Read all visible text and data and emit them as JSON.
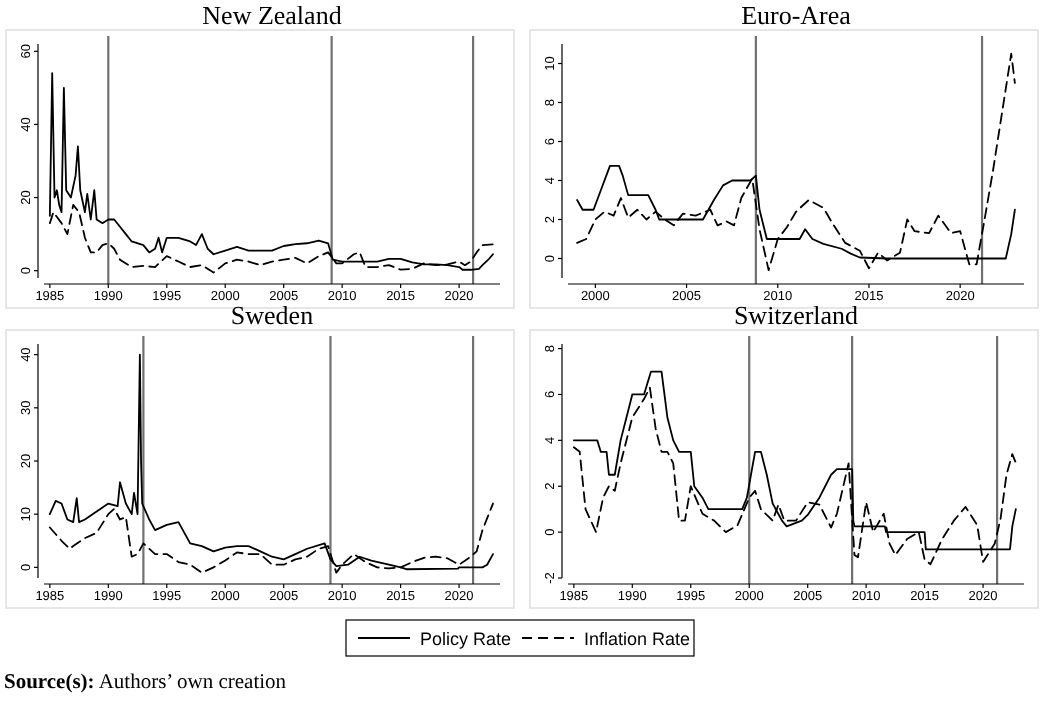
{
  "chart_data": [
    {
      "type": "line",
      "title": "New Zealand",
      "legend": "bottom",
      "annotations": [
        "Source(s): Authors’ own creation"
      ],
      "xlim": [
        1984.5,
        2023.5
      ],
      "ylim": [
        -2,
        62
      ],
      "xticks": [
        1985,
        1990,
        1995,
        2000,
        2005,
        2010,
        2015,
        2020
      ],
      "yticks": [
        0,
        20,
        40,
        60
      ],
      "grid": false,
      "marker": "none",
      "ref_lines": [
        {
          "axis": "x",
          "value": 1990
        },
        {
          "axis": "x",
          "value": 2009.1
        },
        {
          "axis": "x",
          "value": 2021.2
        }
      ],
      "series": [
        {
          "name": "Policy Rate",
          "color": "#000000",
          "line_style": "solid",
          "x": [
            1985,
            1985.2,
            1985.4,
            1985.6,
            1985.8,
            1986,
            1986.2,
            1986.4,
            1986.8,
            1987.2,
            1987.4,
            1987.6,
            1988,
            1988.2,
            1988.5,
            1988.8,
            1989,
            1989.5,
            1990,
            1990.5,
            1991,
            1991.5,
            1992,
            1993,
            1993.5,
            1994,
            1994.3,
            1994.6,
            1995,
            1996,
            1997,
            1997.5,
            1998,
            1998.5,
            1999,
            2000,
            2001,
            2002,
            2003,
            2004,
            2005,
            2006,
            2007,
            2008,
            2008.8,
            2009.2,
            2010,
            2011,
            2012,
            2013,
            2014,
            2015,
            2016,
            2017,
            2018,
            2019,
            2020,
            2020.3,
            2021,
            2021.7,
            2022,
            2022.5,
            2022.9
          ],
          "values": [
            15,
            54,
            20,
            22,
            18,
            16,
            50,
            22,
            20,
            26,
            34,
            22,
            16,
            21,
            14,
            22,
            14,
            13,
            14,
            14,
            12,
            10,
            8,
            7,
            5,
            6,
            9,
            5,
            9,
            9,
            8,
            7,
            10,
            6,
            4.5,
            5.5,
            6.5,
            5.5,
            5.5,
            5.5,
            6.75,
            7.25,
            7.5,
            8.25,
            7.5,
            3,
            2.5,
            2.5,
            2.5,
            2.5,
            3.25,
            3.25,
            2.25,
            1.75,
            1.75,
            1.5,
            1,
            0.25,
            0.25,
            0.5,
            1.5,
            3,
            4.5
          ]
        },
        {
          "name": "Inflation Rate",
          "color": "#000000",
          "line_style": "dashed",
          "x": [
            1985,
            1985.3,
            1986,
            1986.5,
            1987,
            1987.5,
            1988,
            1988.5,
            1989,
            1989.5,
            1990,
            1990.5,
            1991,
            1992,
            1993,
            1994,
            1995,
            1996,
            1997,
            1998,
            1999,
            2000,
            2001,
            2002,
            2003,
            2004,
            2005,
            2006,
            2007,
            2008,
            2008.8,
            2009.5,
            2010,
            2011,
            2011.5,
            2012,
            2013,
            2014,
            2015,
            2016,
            2017,
            2018,
            2019,
            2020,
            2020.5,
            2021,
            2021.5,
            2022,
            2022.9
          ],
          "values": [
            13,
            16,
            13,
            10,
            18,
            16,
            9,
            5,
            5,
            7,
            7.5,
            6,
            3,
            1,
            1.3,
            1,
            4,
            2.5,
            1,
            1.5,
            -0.5,
            2,
            3,
            2.5,
            1.5,
            2.5,
            3,
            3.5,
            2,
            4,
            5,
            2,
            2,
            4.5,
            5,
            1,
            1,
            1.5,
            0.3,
            0.5,
            2,
            1.5,
            1.7,
            2.5,
            1.5,
            2.5,
            5,
            7,
            7.2
          ]
        }
      ]
    },
    {
      "type": "line",
      "title": "Euro-Area",
      "xlim": [
        1998.5,
        2023.5
      ],
      "ylim": [
        -1,
        11
      ],
      "xticks": [
        2000,
        2005,
        2010,
        2015,
        2020
      ],
      "yticks": [
        0,
        2,
        4,
        6,
        8,
        10
      ],
      "grid": false,
      "marker": "none",
      "ref_lines": [
        {
          "axis": "x",
          "value": 2008.8
        },
        {
          "axis": "x",
          "value": 2021.2
        }
      ],
      "series": [
        {
          "color": "#000000",
          "line_style": "solid",
          "x": [
            1999,
            1999.3,
            1999.9,
            2000.3,
            2000.8,
            2001.3,
            2001.5,
            2001.8,
            2002.9,
            2003.3,
            2003.5,
            2005.9,
            2006.5,
            2007,
            2007.5,
            2008.5,
            2008.8,
            2009,
            2009.4,
            2011.2,
            2011.5,
            2011.9,
            2012.5,
            2013.5,
            2014,
            2014.5,
            2016,
            2022.5,
            2022.8,
            2023
          ],
          "values": [
            3,
            2.5,
            2.5,
            3.5,
            4.75,
            4.75,
            4.25,
            3.25,
            3.25,
            2.5,
            2,
            2,
            3,
            3.75,
            4,
            4,
            4.25,
            2.5,
            1,
            1,
            1.5,
            1,
            0.75,
            0.5,
            0.25,
            0.05,
            0,
            0,
            1.25,
            2.5
          ]
        },
        {
          "color": "#000000",
          "line_style": "dashed",
          "x": [
            1999,
            1999.5,
            2000,
            2000.5,
            2001,
            2001.4,
            2001.8,
            2002.3,
            2002.8,
            2003.3,
            2003.8,
            2004.3,
            2004.8,
            2005.5,
            2006.3,
            2006.7,
            2007.2,
            2007.6,
            2008,
            2008.6,
            2009,
            2009.5,
            2010,
            2010.5,
            2011,
            2011.7,
            2012.5,
            2013,
            2013.7,
            2014.5,
            2015,
            2015.5,
            2016,
            2016.7,
            2017.1,
            2017.5,
            2018.3,
            2018.8,
            2019.5,
            2020,
            2020.5,
            2020.9,
            2021.3,
            2021.8,
            2022.3,
            2022.8,
            2023
          ],
          "values": [
            0.8,
            1,
            2,
            2.4,
            2.2,
            3.1,
            2.1,
            2.5,
            2,
            2.4,
            2,
            1.7,
            2.3,
            2.2,
            2.5,
            1.7,
            1.9,
            1.7,
            3.1,
            4.1,
            1.5,
            -0.6,
            1,
            1.6,
            2.4,
            3,
            2.6,
            1.8,
            0.8,
            0.4,
            -0.5,
            0.3,
            -0.1,
            0.3,
            2,
            1.4,
            1.3,
            2.2,
            1.3,
            1.4,
            -0.3,
            -0.3,
            1.8,
            4.5,
            7.5,
            10.5,
            9
          ]
        }
      ]
    },
    {
      "type": "line",
      "title": "Sweden",
      "xlim": [
        1984.5,
        2023.5
      ],
      "ylim": [
        -2,
        42
      ],
      "xticks": [
        1985,
        1990,
        1995,
        2000,
        2005,
        2010,
        2015,
        2020
      ],
      "yticks": [
        0,
        10,
        20,
        30,
        40
      ],
      "grid": false,
      "marker": "none",
      "ref_lines": [
        {
          "axis": "x",
          "value": 1993
        },
        {
          "axis": "x",
          "value": 2009
        },
        {
          "axis": "x",
          "value": 2021.2
        }
      ],
      "series": [
        {
          "color": "#000000",
          "line_style": "solid",
          "x": [
            1985,
            1985.5,
            1986,
            1986.5,
            1987,
            1987.3,
            1987.5,
            1988,
            1989,
            1990,
            1990.8,
            1991,
            1991.5,
            1992,
            1992.2,
            1992.5,
            1992.7,
            1992.8,
            1992.9,
            1993.5,
            1994,
            1995,
            1996,
            1997,
            1998,
            1999,
            2000,
            2001,
            2002,
            2003,
            2004,
            2005,
            2006,
            2007,
            2008.5,
            2009,
            2009.5,
            2010.5,
            2011.5,
            2012.5,
            2014,
            2015,
            2015.5,
            2019.9,
            2020,
            2022,
            2022.4,
            2022.9
          ],
          "values": [
            10,
            12.5,
            12,
            9,
            8.5,
            13,
            8.5,
            9,
            10.5,
            12,
            11.5,
            16,
            12,
            10,
            14,
            10,
            40,
            20,
            12,
            9,
            7,
            8,
            8.5,
            4.5,
            4,
            3,
            3.7,
            4,
            4,
            3,
            2,
            1.5,
            2.5,
            3.5,
            4.5,
            1.5,
            0.25,
            0.5,
            2,
            1.25,
            0.5,
            0,
            -0.35,
            -0.25,
            0,
            0,
            0.5,
            2.5
          ]
        },
        {
          "color": "#000000",
          "line_style": "dashed",
          "x": [
            1985,
            1986,
            1986.7,
            1987,
            1988,
            1989,
            1990,
            1990.5,
            1991,
            1991.5,
            1992,
            1992.5,
            1993,
            1994,
            1995,
            1996,
            1997,
            1998,
            1999,
            2000,
            2001,
            2002,
            2003,
            2004,
            2005,
            2006,
            2007,
            2008,
            2008.8,
            2009.5,
            2010,
            2011,
            2012,
            2013,
            2014,
            2015,
            2016,
            2017,
            2018,
            2019,
            2020,
            2021,
            2021.5,
            2022,
            2022.9
          ],
          "values": [
            7.5,
            5,
            3.5,
            4,
            5.5,
            6.5,
            10,
            11,
            9,
            9.5,
            2,
            2.5,
            4.5,
            2.5,
            2.5,
            1,
            0.5,
            -1,
            0,
            1.3,
            2.8,
            2.5,
            2.5,
            0.5,
            0.5,
            1.5,
            2,
            3.5,
            4,
            -1,
            0.5,
            2.5,
            1,
            0,
            -0.2,
            0,
            1,
            1.8,
            2,
            1.7,
            0.5,
            2,
            3,
            7,
            12
          ]
        }
      ]
    },
    {
      "type": "line",
      "title": "Switzerland",
      "xlim": [
        1984.5,
        2023.5
      ],
      "ylim": [
        -2,
        8.2
      ],
      "xticks": [
        1985,
        1990,
        1995,
        2000,
        2005,
        2010,
        2015,
        2020
      ],
      "yticks": [
        -2,
        0,
        2,
        4,
        6,
        8
      ],
      "grid": false,
      "marker": "none",
      "ref_lines": [
        {
          "axis": "x",
          "value": 2000
        },
        {
          "axis": "x",
          "value": 2008.8
        },
        {
          "axis": "x",
          "value": 2021.2
        }
      ],
      "series": [
        {
          "color": "#000000",
          "line_style": "solid",
          "x": [
            1985,
            1987,
            1987.3,
            1987.8,
            1988,
            1988.5,
            1989,
            1989.5,
            1990,
            1991,
            1991.6,
            1992.5,
            1993,
            1993.5,
            1994,
            1995,
            1995.3,
            1996,
            1996.5,
            1999.4,
            1999.8,
            2000.5,
            2001,
            2001.5,
            2002,
            2002.8,
            2003.2,
            2004.5,
            2005,
            2006,
            2007,
            2007.5,
            2008.8,
            2008.9,
            2009,
            2011.6,
            2011.7,
            2015,
            2015.1,
            2022.3,
            2022.5,
            2022.8
          ],
          "values": [
            4,
            4,
            3.5,
            3.5,
            2.5,
            2.5,
            4,
            5,
            6,
            6,
            7,
            7,
            5,
            4,
            3.5,
            3.5,
            2,
            1.5,
            1,
            1,
            1.5,
            3.5,
            3.5,
            2.5,
            1.25,
            0.5,
            0.25,
            0.5,
            0.75,
            1.5,
            2.5,
            2.75,
            2.75,
            0.5,
            0.25,
            0.25,
            0,
            0,
            -0.75,
            -0.75,
            0.25,
            1
          ]
        },
        {
          "color": "#000000",
          "line_style": "dashed",
          "x": [
            1985,
            1985.5,
            1986,
            1986.9,
            1987.5,
            1988,
            1988.5,
            1989,
            1990,
            1991,
            1991.5,
            1992,
            1992.5,
            1993,
            1993.5,
            1994,
            1994.5,
            1995,
            1996,
            1997,
            1998,
            1999,
            2000,
            2000.5,
            2001,
            2002,
            2002.5,
            2003,
            2004,
            2005,
            2006,
            2007,
            2007.5,
            2008.5,
            2009,
            2009.3,
            2010,
            2010.6,
            2011.5,
            2012,
            2012.5,
            2013.5,
            2014.5,
            2015,
            2015.5,
            2016.5,
            2017.5,
            2018.5,
            2019.5,
            2020,
            2021,
            2021.5,
            2022,
            2022.5,
            2022.9
          ],
          "values": [
            3.7,
            3.5,
            1,
            0,
            1.5,
            2,
            1.8,
            3,
            5,
            5.8,
            6.3,
            4.5,
            3.5,
            3.5,
            3,
            0.5,
            0.5,
            2,
            0.8,
            0.5,
            0,
            0.3,
            1.5,
            1.8,
            1,
            0.5,
            1.2,
            0.5,
            0.5,
            1.3,
            1.2,
            0.2,
            0.8,
            3,
            -1,
            -1.1,
            1.3,
            0,
            0.8,
            -0.5,
            -1,
            -0.3,
            0,
            -1.2,
            -1.4,
            -0.3,
            0.5,
            1.1,
            0.3,
            -1.3,
            -0.5,
            0.6,
            2.5,
            3.4,
            2.9
          ]
        }
      ]
    }
  ]
}
